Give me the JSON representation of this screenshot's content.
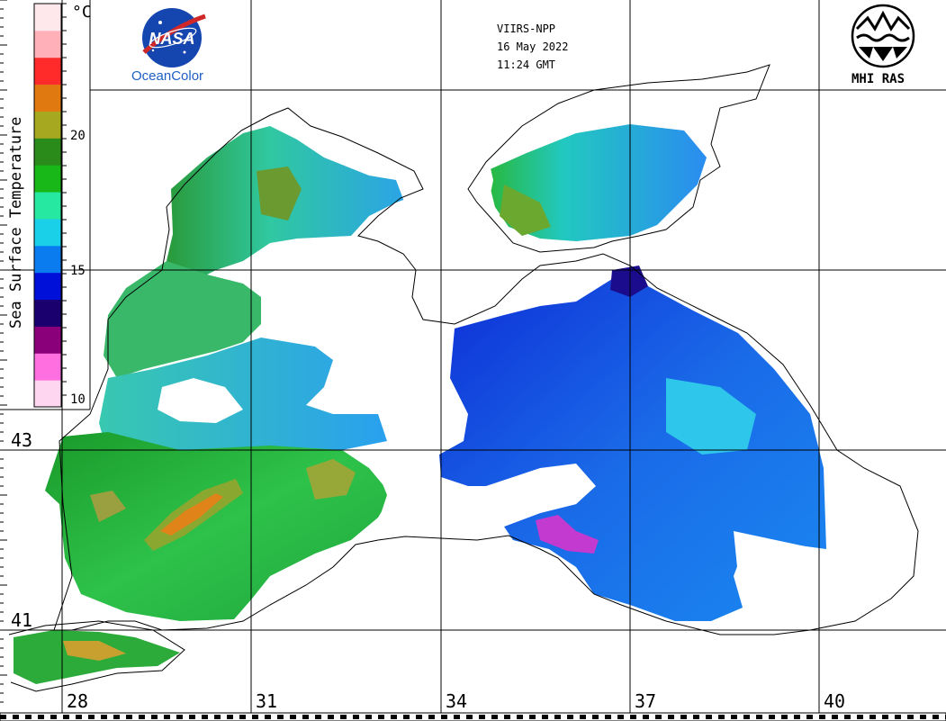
{
  "header": {
    "satellite": "VIIRS-NPP",
    "date": "16 May 2022",
    "time": "11:24 GMT"
  },
  "logos": {
    "nasa_mark": "NASA",
    "nasa_caption": "OceanColor",
    "mhi_caption": "MHI RAS"
  },
  "colorbar": {
    "title": "Sea Surface Temperature",
    "unit": "°C",
    "ticks": [
      "20",
      "15",
      "10"
    ],
    "range": [
      10,
      25
    ],
    "colors": [
      "#ffd6f0",
      "#ff6fe0",
      "#8a007a",
      "#1a006e",
      "#0010d8",
      "#0a7cf0",
      "#19d0e8",
      "#27e8a0",
      "#18b818",
      "#2a8a1a",
      "#a6a820",
      "#e07a10",
      "#ff2a2a",
      "#ffb0b8",
      "#ffe8ec"
    ]
  },
  "grid": {
    "lon_labels": [
      "28",
      "31",
      "34",
      "37",
      "40"
    ],
    "lat_labels": [
      "43",
      "41"
    ]
  },
  "palette": {
    "land": "#ffffff",
    "coast": "#000000",
    "cloud": "#ffffff",
    "warm": "#2faa22",
    "cool": "#1a62e6",
    "cold": "#0a1fc0"
  }
}
